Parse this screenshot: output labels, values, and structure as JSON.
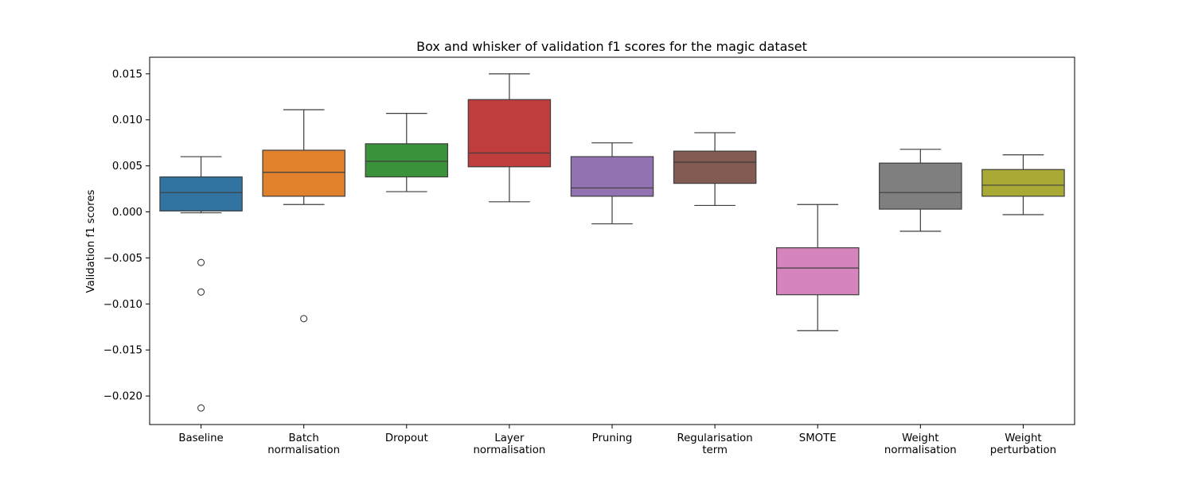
{
  "chart_data": {
    "type": "box",
    "title": "Box and whisker of validation f1 scores for the magic dataset",
    "xlabel": "",
    "ylabel": "Validation f1 scores",
    "ylim": [
      -0.0231,
      0.0168
    ],
    "yticks": [
      0.015,
      0.01,
      0.005,
      0.0,
      -0.005,
      -0.01,
      -0.015,
      -0.02
    ],
    "ytick_labels": [
      "0.015",
      "0.010",
      "0.005",
      "0.000",
      "−0.005",
      "−0.010",
      "−0.015",
      "−0.020"
    ],
    "grid": false,
    "legend": "none",
    "categories": [
      {
        "lines": [
          "Baseline"
        ],
        "color": "#3274a1",
        "whisker_low": -0.0001,
        "q1": 0.0001,
        "median": 0.0021,
        "q3": 0.0038,
        "whisker_high": 0.006,
        "outliers": [
          -0.0055,
          -0.0087,
          -0.0213
        ]
      },
      {
        "lines": [
          "Batch",
          "normalisation"
        ],
        "color": "#e1812c",
        "whisker_low": 0.0008,
        "q1": 0.0017,
        "median": 0.0043,
        "q3": 0.0067,
        "whisker_high": 0.0111,
        "outliers": [
          -0.0116
        ]
      },
      {
        "lines": [
          "Dropout"
        ],
        "color": "#3a923a",
        "whisker_low": 0.0022,
        "q1": 0.0038,
        "median": 0.0055,
        "q3": 0.0074,
        "whisker_high": 0.0107,
        "outliers": []
      },
      {
        "lines": [
          "Layer",
          "normalisation"
        ],
        "color": "#c03d3e",
        "whisker_low": 0.0011,
        "q1": 0.0049,
        "median": 0.0064,
        "q3": 0.0122,
        "whisker_high": 0.015,
        "outliers": []
      },
      {
        "lines": [
          "Pruning"
        ],
        "color": "#9372b2",
        "whisker_low": -0.0013,
        "q1": 0.0017,
        "median": 0.0026,
        "q3": 0.006,
        "whisker_high": 0.0075,
        "outliers": []
      },
      {
        "lines": [
          "Regularisation",
          "term"
        ],
        "color": "#845b53",
        "whisker_low": 0.0007,
        "q1": 0.0031,
        "median": 0.0054,
        "q3": 0.0066,
        "whisker_high": 0.0086,
        "outliers": []
      },
      {
        "lines": [
          "SMOTE"
        ],
        "color": "#d684bd",
        "whisker_low": -0.0129,
        "q1": -0.009,
        "median": -0.0061,
        "q3": -0.0039,
        "whisker_high": 0.0008,
        "outliers": []
      },
      {
        "lines": [
          "Weight",
          "normalisation"
        ],
        "color": "#7f7f7f",
        "whisker_low": -0.0021,
        "q1": 0.0003,
        "median": 0.0021,
        "q3": 0.0053,
        "whisker_high": 0.0068,
        "outliers": []
      },
      {
        "lines": [
          "Weight",
          "perturbation"
        ],
        "color": "#a9aa35",
        "whisker_low": -0.0003,
        "q1": 0.0017,
        "median": 0.0029,
        "q3": 0.0046,
        "whisker_high": 0.0062,
        "outliers": []
      }
    ]
  }
}
